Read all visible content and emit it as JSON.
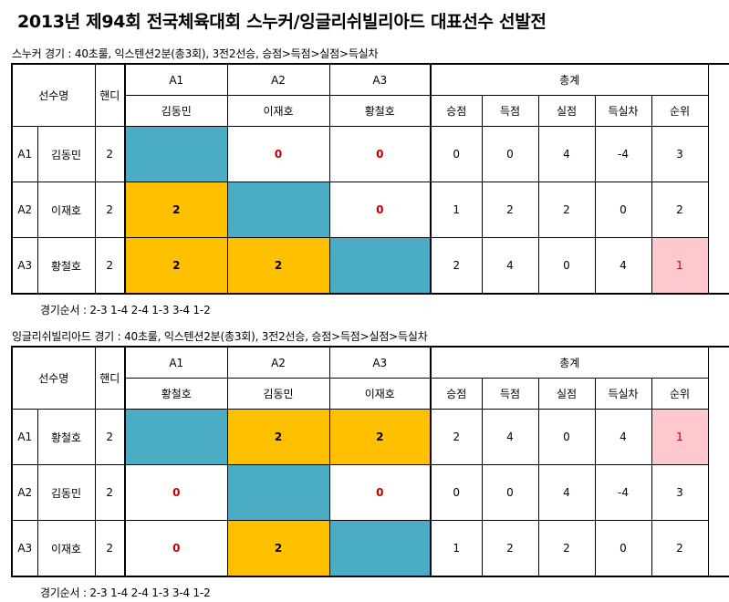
{
  "title": "2013년 제94회 전국체육대회 스누커/잉글리쉬빌리아드 대표선수 선발전",
  "headers": {
    "player": "선수명",
    "handicap": "핸디",
    "total": "총계",
    "wins": "승점",
    "scored": "득점",
    "conceded": "실점",
    "diff": "득실차",
    "rank": "순위"
  },
  "sections": [
    {
      "subtitle": "스누커 경기 : 40초룰, 익스텐션2분(총3회), 3전2선승, 승점>득점>실점>득실차",
      "order": "경기순서 : 2-3 1-4 2-4 1-3 3-4 1-2",
      "columns": [
        {
          "code": "A1",
          "name": "김동민"
        },
        {
          "code": "A2",
          "name": "이재호"
        },
        {
          "code": "A3",
          "name": "황철호"
        }
      ],
      "rows": [
        {
          "code": "A1",
          "name": "김동민",
          "handicap": "2",
          "cells": [
            {
              "v": "",
              "t": "self"
            },
            {
              "v": "0",
              "t": "lose"
            },
            {
              "v": "0",
              "t": "lose"
            }
          ],
          "wins": "0",
          "scored": "0",
          "conceded": "4",
          "diff": "-4",
          "rank": "3",
          "first": false
        },
        {
          "code": "A2",
          "name": "이재호",
          "handicap": "2",
          "cells": [
            {
              "v": "2",
              "t": "win"
            },
            {
              "v": "",
              "t": "self"
            },
            {
              "v": "0",
              "t": "lose"
            }
          ],
          "wins": "1",
          "scored": "2",
          "conceded": "2",
          "diff": "0",
          "rank": "2",
          "first": false
        },
        {
          "code": "A3",
          "name": "황철호",
          "handicap": "2",
          "cells": [
            {
              "v": "2",
              "t": "win"
            },
            {
              "v": "2",
              "t": "win"
            },
            {
              "v": "",
              "t": "self"
            }
          ],
          "wins": "2",
          "scored": "4",
          "conceded": "0",
          "diff": "4",
          "rank": "1",
          "first": true
        }
      ]
    },
    {
      "subtitle": "잉글리쉬빌리아드 경기 : 40초룰, 익스텐션2분(총3회), 3전2선승, 승점>득점>실점>득실차",
      "order": "경기순서 : 2-3 1-4 2-4 1-3 3-4 1-2",
      "columns": [
        {
          "code": "A1",
          "name": "황철호"
        },
        {
          "code": "A2",
          "name": "김동민"
        },
        {
          "code": "A3",
          "name": "이재호"
        }
      ],
      "rows": [
        {
          "code": "A1",
          "name": "황철호",
          "handicap": "2",
          "cells": [
            {
              "v": "",
              "t": "self"
            },
            {
              "v": "2",
              "t": "win"
            },
            {
              "v": "2",
              "t": "win"
            }
          ],
          "wins": "2",
          "scored": "4",
          "conceded": "0",
          "diff": "4",
          "rank": "1",
          "first": true
        },
        {
          "code": "A2",
          "name": "김동민",
          "handicap": "2",
          "cells": [
            {
              "v": "0",
              "t": "lose"
            },
            {
              "v": "",
              "t": "self"
            },
            {
              "v": "0",
              "t": "lose"
            }
          ],
          "wins": "0",
          "scored": "0",
          "conceded": "4",
          "diff": "-4",
          "rank": "3",
          "first": false
        },
        {
          "code": "A3",
          "name": "이재호",
          "handicap": "2",
          "cells": [
            {
              "v": "0",
              "t": "lose"
            },
            {
              "v": "2",
              "t": "win"
            },
            {
              "v": "",
              "t": "self"
            }
          ],
          "wins": "1",
          "scored": "2",
          "conceded": "2",
          "diff": "0",
          "rank": "2",
          "first": false
        }
      ]
    }
  ]
}
